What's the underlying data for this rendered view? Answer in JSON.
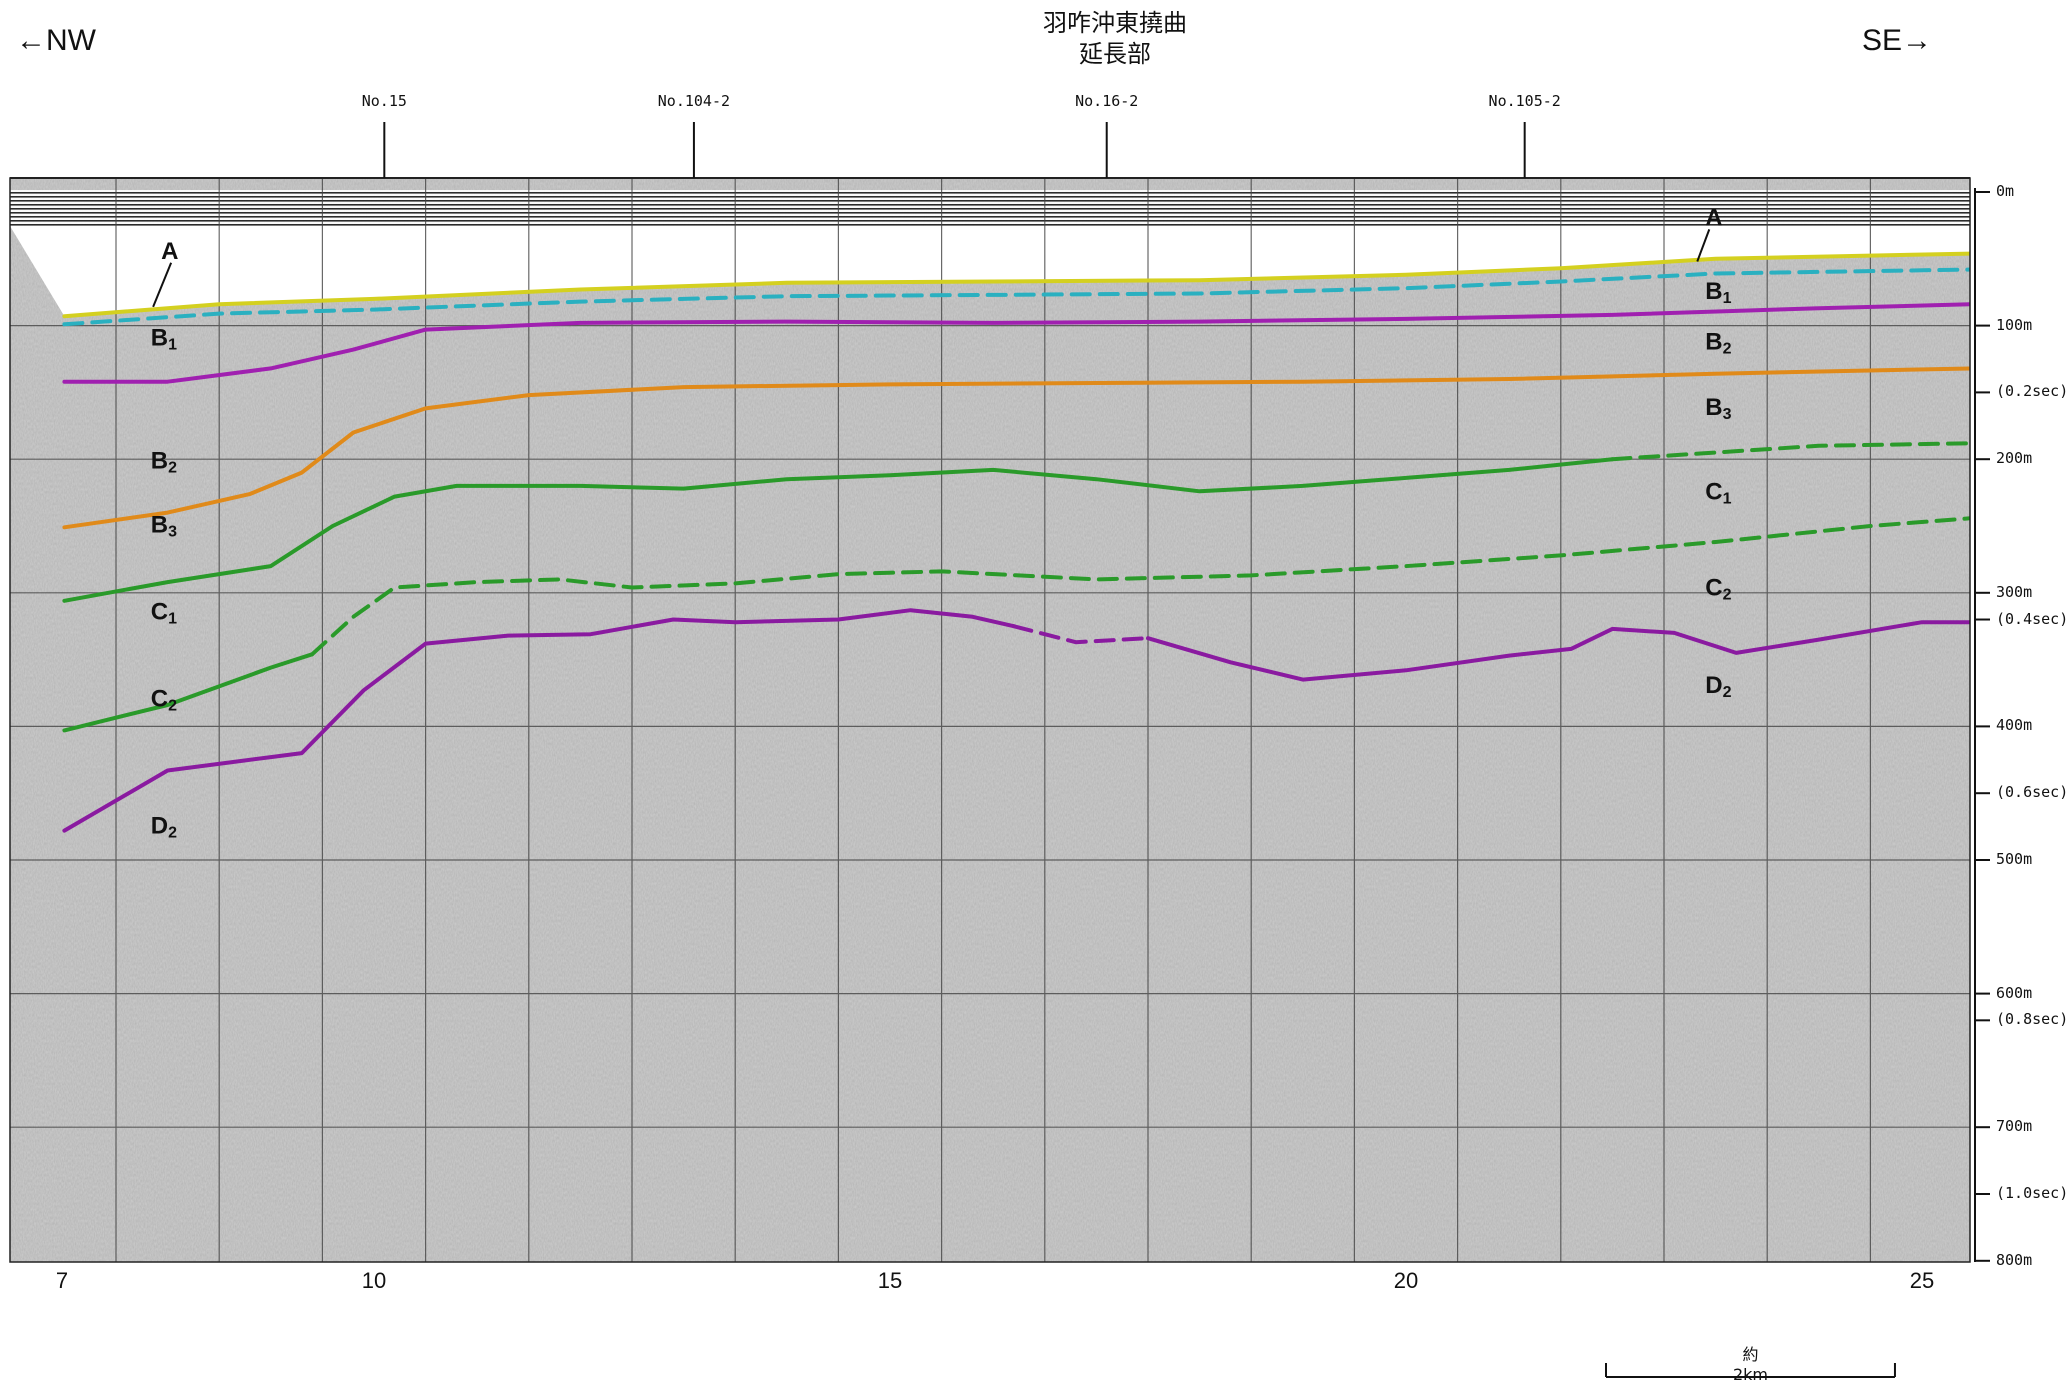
{
  "title": {
    "line1": "羽咋沖東撓曲",
    "line2": "延長部"
  },
  "direction": {
    "left": "←NW",
    "right": "SE→"
  },
  "crossing_lines": [
    {
      "label": "No.15",
      "km": 10.1
    },
    {
      "label": "No.104-2",
      "km": 13.1
    },
    {
      "label": "No.16-2",
      "km": 17.1
    },
    {
      "label": "No.105-2",
      "km": 21.15
    }
  ],
  "depth_axis": [
    {
      "label": "0m",
      "depth": 0
    },
    {
      "label": "100m",
      "depth": 100
    },
    {
      "label": "(0.2sec)",
      "depth": 150
    },
    {
      "label": "200m",
      "depth": 200
    },
    {
      "label": "300m",
      "depth": 300
    },
    {
      "label": "(0.4sec)",
      "depth": 320
    },
    {
      "label": "400m",
      "depth": 400
    },
    {
      "label": "(0.6sec)",
      "depth": 450
    },
    {
      "label": "500m",
      "depth": 500
    },
    {
      "label": "600m",
      "depth": 600
    },
    {
      "label": "(0.8sec)",
      "depth": 620
    },
    {
      "label": "700m",
      "depth": 700
    },
    {
      "label": "(1.0sec)",
      "depth": 750
    },
    {
      "label": "800m",
      "depth": 800
    }
  ],
  "distance_axis": [
    {
      "label": "7",
      "km": 7
    },
    {
      "label": "10",
      "km": 10
    },
    {
      "label": "15",
      "km": 15
    },
    {
      "label": "20",
      "km": 20
    },
    {
      "label": "25",
      "km": 25
    }
  ],
  "scale_bar": {
    "label": "約2km",
    "km_length": 2.8
  },
  "unit_labels": {
    "left": [
      {
        "text": "A",
        "km": 9.1,
        "depth": 50
      },
      {
        "text": "B",
        "sub": "1",
        "km": 9.0,
        "depth": 115
      },
      {
        "text": "B",
        "sub": "2",
        "km": 9.0,
        "depth": 207
      },
      {
        "text": "B",
        "sub": "3",
        "km": 9.0,
        "depth": 255
      },
      {
        "text": "C",
        "sub": "1",
        "km": 9.0,
        "depth": 320
      },
      {
        "text": "C",
        "sub": "2",
        "km": 9.0,
        "depth": 385
      },
      {
        "text": "D",
        "sub": "2",
        "km": 9.0,
        "depth": 480
      }
    ],
    "right": [
      {
        "text": "A",
        "km": 22.9,
        "depth": 25
      },
      {
        "text": "B",
        "sub": "1",
        "km": 22.9,
        "depth": 80
      },
      {
        "text": "B",
        "sub": "2",
        "km": 22.9,
        "depth": 118
      },
      {
        "text": "B",
        "sub": "3",
        "km": 22.9,
        "depth": 167
      },
      {
        "text": "C",
        "sub": "1",
        "km": 22.9,
        "depth": 230
      },
      {
        "text": "C",
        "sub": "2",
        "km": 22.9,
        "depth": 302
      },
      {
        "text": "D",
        "sub": "2",
        "km": 22.9,
        "depth": 375
      }
    ]
  },
  "horizons": [
    {
      "name": "A",
      "color": "#d4d020",
      "dashed": false,
      "points": [
        [
          7,
          93
        ],
        [
          8.5,
          84
        ],
        [
          10,
          80
        ],
        [
          12,
          73
        ],
        [
          14,
          68
        ],
        [
          16,
          67
        ],
        [
          18,
          66
        ],
        [
          20,
          62
        ],
        [
          21.5,
          57
        ],
        [
          23,
          50
        ],
        [
          25.5,
          46
        ]
      ]
    },
    {
      "name": "B1",
      "color": "#2ab0c0",
      "dashed": true,
      "points": [
        [
          7,
          99
        ],
        [
          8.5,
          91
        ],
        [
          10,
          88
        ],
        [
          12,
          82
        ],
        [
          14,
          78
        ],
        [
          16,
          77
        ],
        [
          18,
          76
        ],
        [
          20,
          72
        ],
        [
          21.5,
          67
        ],
        [
          23,
          61
        ],
        [
          25.5,
          58
        ]
      ]
    },
    {
      "name": "B2",
      "color": "#a020b0",
      "dashed": false,
      "points": [
        [
          7,
          142
        ],
        [
          8,
          142
        ],
        [
          9,
          132
        ],
        [
          9.8,
          118
        ],
        [
          10.5,
          103
        ],
        [
          12,
          98
        ],
        [
          14,
          97
        ],
        [
          16,
          98
        ],
        [
          18,
          97
        ],
        [
          20,
          95
        ],
        [
          22,
          92
        ],
        [
          24,
          87
        ],
        [
          25.5,
          84
        ]
      ]
    },
    {
      "name": "B3",
      "color": "#e08a1a",
      "dashed": false,
      "points": [
        [
          7,
          251
        ],
        [
          8,
          240
        ],
        [
          8.8,
          226
        ],
        [
          9.3,
          210
        ],
        [
          9.8,
          180
        ],
        [
          10.5,
          162
        ],
        [
          11.5,
          152
        ],
        [
          13,
          146
        ],
        [
          15,
          144
        ],
        [
          17,
          143
        ],
        [
          19,
          142
        ],
        [
          21,
          140
        ],
        [
          23,
          136
        ],
        [
          25.5,
          132
        ]
      ]
    },
    {
      "name": "C1",
      "color": "#2a9a2a",
      "dashed": false,
      "points": [
        [
          7,
          306
        ],
        [
          8,
          292
        ],
        [
          9,
          280
        ],
        [
          9.6,
          250
        ],
        [
          10.2,
          228
        ],
        [
          10.8,
          220
        ],
        [
          12,
          220
        ],
        [
          13,
          222
        ],
        [
          14,
          215
        ],
        [
          15,
          212
        ],
        [
          16,
          208
        ],
        [
          17,
          215
        ],
        [
          18,
          224
        ],
        [
          19,
          220
        ],
        [
          20,
          214
        ],
        [
          21,
          208
        ],
        [
          22,
          200
        ]
      ]
    },
    {
      "name": "C1-dashed",
      "color": "#2a9a2a",
      "dashed": true,
      "points": [
        [
          22,
          200
        ],
        [
          23,
          195
        ],
        [
          24,
          190
        ],
        [
          25.5,
          188
        ]
      ]
    },
    {
      "name": "C2",
      "color": "#2a9a2a",
      "dashed": false,
      "points": [
        [
          7,
          403
        ],
        [
          8,
          384
        ],
        [
          9,
          356
        ],
        [
          9.4,
          346
        ]
      ]
    },
    {
      "name": "C2-dashed",
      "color": "#2a9a2a",
      "dashed": true,
      "points": [
        [
          9.4,
          346
        ],
        [
          9.8,
          318
        ],
        [
          10.2,
          296
        ],
        [
          11,
          292
        ],
        [
          11.8,
          290
        ],
        [
          12.5,
          296
        ],
        [
          13.5,
          293
        ],
        [
          14.5,
          286
        ],
        [
          15.5,
          284
        ],
        [
          17,
          290
        ],
        [
          18.5,
          287
        ],
        [
          20,
          280
        ],
        [
          21.5,
          272
        ],
        [
          23,
          262
        ],
        [
          24.5,
          250
        ],
        [
          25.5,
          244
        ]
      ]
    },
    {
      "name": "D2",
      "color": "#8a1aa0",
      "dashed": false,
      "points": [
        [
          7,
          478
        ],
        [
          8,
          433
        ],
        [
          9,
          423
        ],
        [
          9.3,
          420
        ],
        [
          9.9,
          373
        ],
        [
          10.5,
          338
        ],
        [
          11.3,
          332
        ],
        [
          12.1,
          331
        ],
        [
          12.9,
          320
        ],
        [
          13.5,
          322
        ],
        [
          14.5,
          320
        ],
        [
          15.2,
          313
        ],
        [
          15.8,
          318
        ],
        [
          16.2,
          325
        ]
      ]
    },
    {
      "name": "D2-dashed",
      "color": "#8a1aa0",
      "dashed": true,
      "points": [
        [
          16.2,
          325
        ],
        [
          16.8,
          337
        ],
        [
          17.5,
          334
        ]
      ]
    },
    {
      "name": "D2-right",
      "color": "#8a1aa0",
      "dashed": false,
      "points": [
        [
          17.5,
          334
        ],
        [
          18.3,
          352
        ],
        [
          19,
          365
        ],
        [
          20,
          358
        ],
        [
          21,
          347
        ],
        [
          21.6,
          342
        ],
        [
          22,
          327
        ],
        [
          22.6,
          330
        ],
        [
          23.2,
          345
        ],
        [
          24,
          335
        ],
        [
          25,
          322
        ],
        [
          25.5,
          322
        ]
      ]
    }
  ],
  "colors": {
    "grid": "#444444",
    "section_fill": "#b7b7b7"
  }
}
